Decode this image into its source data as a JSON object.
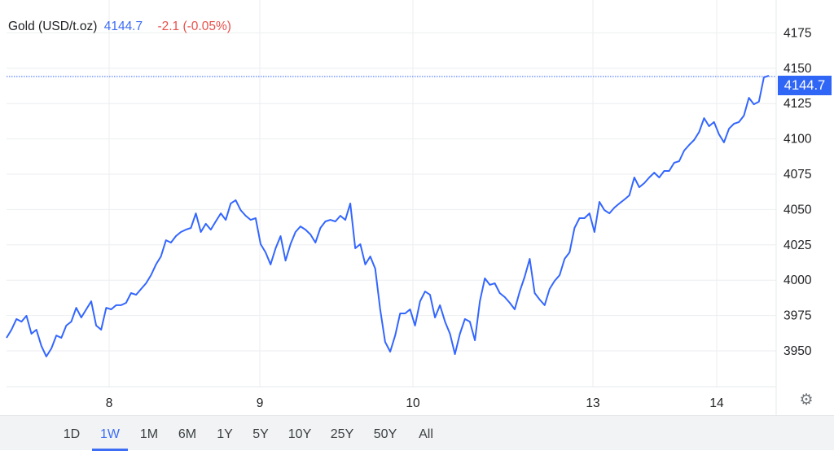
{
  "header": {
    "name": "Gold (USD/t.oz)",
    "price": "4144.7",
    "change": "-2.1 (-0.05%)"
  },
  "price_tag": "4144.7",
  "colors": {
    "line": "#3366ff",
    "up_price": "#3d6df5",
    "change_negative": "#e8504b",
    "tag": "#2f66f5"
  },
  "ranges": [
    {
      "label": "1D"
    },
    {
      "label": "1W",
      "active": true
    },
    {
      "label": "1M"
    },
    {
      "label": "6M"
    },
    {
      "label": "1Y"
    },
    {
      "label": "5Y"
    },
    {
      "label": "10Y"
    },
    {
      "label": "25Y"
    },
    {
      "label": "50Y"
    },
    {
      "label": "All"
    }
  ],
  "settings_icon": "gear-icon",
  "chart_data": {
    "type": "line",
    "title": "",
    "xlabel": "",
    "ylabel": "",
    "x_tick_labels": [
      "8",
      "9",
      "10",
      "13",
      "14"
    ],
    "y_ticks": [
      3950,
      3975,
      4000,
      4025,
      4050,
      4075,
      4100,
      4125,
      4150,
      4175
    ],
    "ylim": [
      3925,
      4195
    ],
    "grid": true,
    "last_value": 4144.7,
    "series": [
      {
        "values": [
          3959.2,
          3965,
          3972.5,
          3970.7,
          3974.8,
          3962.1,
          3965,
          3953.5,
          3946,
          3951.7,
          3960.9,
          3959.2,
          3967.9,
          3970.7,
          3980.5,
          3973.6,
          3979.4,
          3985.1,
          3967.9,
          3965,
          3980.5,
          3979.4,
          3982.3,
          3982.3,
          3984,
          3990.9,
          3989.7,
          3993.8,
          3997.8,
          4003.6,
          4011.1,
          4016.8,
          4028.3,
          4026.6,
          4031.2,
          4034.1,
          4035.8,
          4037,
          4047.3,
          4034.1,
          4039.9,
          4035.8,
          4041.6,
          4047.3,
          4042.7,
          4054.3,
          4056.6,
          4049.6,
          4045.6,
          4042.7,
          4043.9,
          4025.5,
          4019.7,
          4011.1,
          4022.6,
          4031.2,
          4013.9,
          4025.5,
          4034.1,
          4038.1,
          4035.8,
          4032.4,
          4026.6,
          4037,
          4041.6,
          4042.7,
          4041.6,
          4045.6,
          4042.7,
          4054.3,
          4022.6,
          4025.5,
          4011.1,
          4016.8,
          4008.2,
          3979.4,
          3956.3,
          3949.4,
          3960.9,
          3976.5,
          3976.5,
          3979.4,
          3967.9,
          3985.1,
          3992,
          3989.7,
          3973.6,
          3982.3,
          3970.7,
          3962.1,
          3947.7,
          3962.1,
          3972.5,
          3970.7,
          3957.5,
          3985.1,
          4001.3,
          3996.7,
          3997.8,
          3990.9,
          3988,
          3984,
          3979.4,
          3992,
          4002.4,
          4015.1,
          3990.9,
          3986.3,
          3982.3,
          3993.8,
          3999.5,
          4003.6,
          4015.1,
          4019.7,
          4037,
          4043.9,
          4043.9,
          4047.3,
          4034.1,
          4055.4,
          4049.6,
          4047.3,
          4051.4,
          4054.3,
          4057.1,
          4060,
          4072.7,
          4065.8,
          4068.7,
          4072.7,
          4076.1,
          4072.7,
          4077.3,
          4077.3,
          4083.1,
          4084.2,
          4091.7,
          4095.7,
          4099.2,
          4104.9,
          4114.7,
          4109,
          4111.9,
          4103.2,
          4097.5,
          4107.2,
          4110.7,
          4111.9,
          4116.5,
          4129.1,
          4124.5,
          4126.3,
          4143.5,
          4144.7
        ]
      }
    ]
  }
}
